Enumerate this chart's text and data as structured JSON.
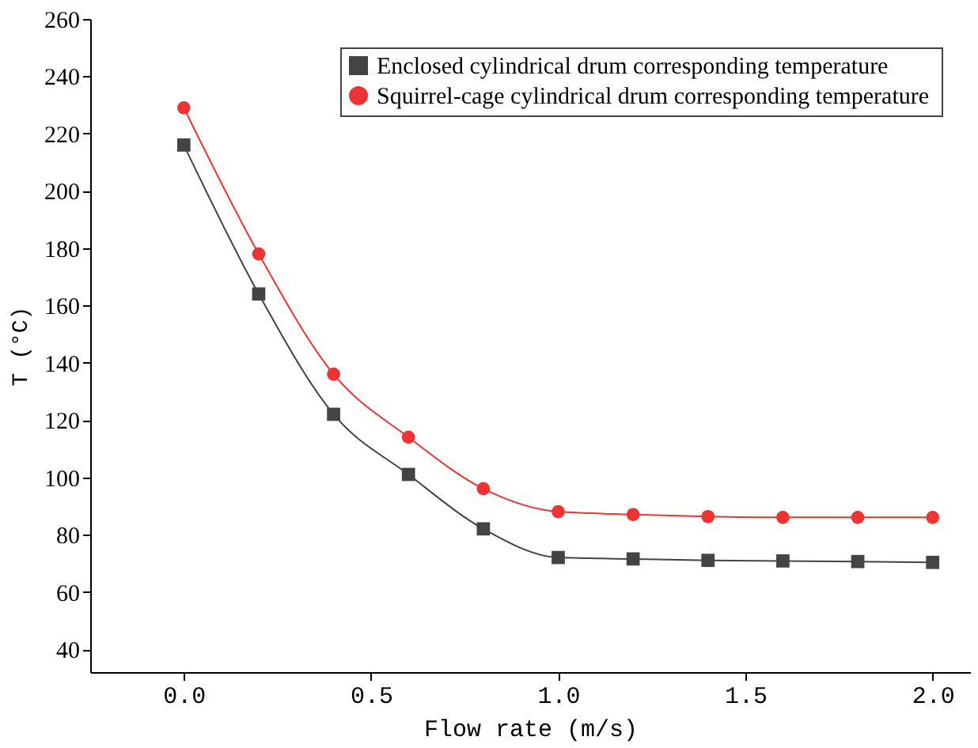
{
  "chart_data": {
    "type": "line",
    "xlabel": "Flow rate (m/s)",
    "ylabel": "T (°C)",
    "x": [
      0,
      0.2,
      0.4,
      0.6,
      0.8,
      1.0,
      1.2,
      1.4,
      1.6,
      1.8,
      2.0
    ],
    "series": [
      {
        "name": "Enclosed cylindrical drum corresponding  temperature",
        "color": "#444444",
        "marker": "square",
        "values": [
          216,
          164,
          122,
          101,
          82,
          72,
          71.5,
          71,
          70.8,
          70.6,
          70.3
        ]
      },
      {
        "name": "Squirrel-cage cylindrical drum corresponding  temperature",
        "color": "#ee3333",
        "marker": "circle",
        "values": [
          229,
          178,
          136,
          114,
          96,
          88,
          87,
          86.3,
          86,
          86,
          86
        ]
      }
    ],
    "xlim": [
      -0.25,
      2.1
    ],
    "ylim": [
      32,
      260
    ],
    "xticks": [
      {
        "value": 0,
        "label": "0.0"
      },
      {
        "value": 0.5,
        "label": "0.5"
      },
      {
        "value": 1,
        "label": "1.0"
      },
      {
        "value": 1.5,
        "label": "1.5"
      },
      {
        "value": 2,
        "label": "2.0"
      }
    ],
    "yticks": [
      40,
      60,
      80,
      100,
      120,
      140,
      160,
      180,
      200,
      220,
      240,
      260
    ],
    "legend": "top right",
    "grid": false,
    "line_style": "solid"
  }
}
